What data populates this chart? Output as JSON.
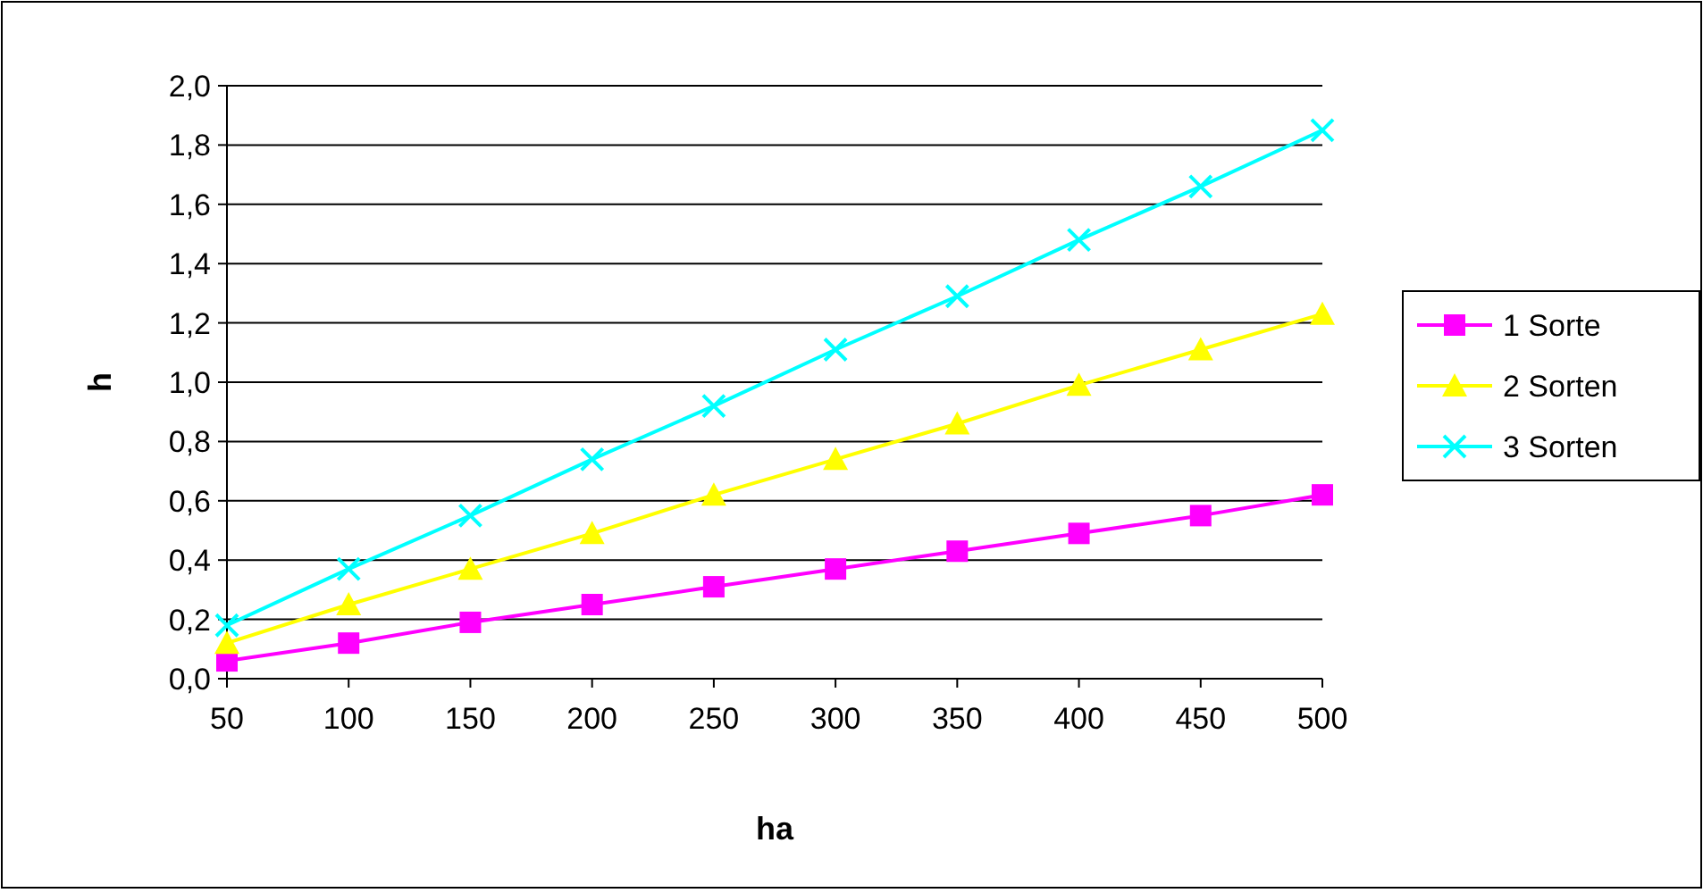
{
  "chart_data": {
    "type": "line",
    "xlabel": "ha",
    "ylabel": "h",
    "x": [
      50,
      100,
      150,
      200,
      250,
      300,
      350,
      400,
      450,
      500
    ],
    "xlim": [
      50,
      500
    ],
    "xticks": [
      50,
      100,
      150,
      200,
      250,
      300,
      350,
      400,
      450,
      500
    ],
    "ylim": [
      0,
      2
    ],
    "yticks": [
      {
        "value": 0,
        "label": "0,0"
      },
      {
        "value": 0.2,
        "label": "0,2"
      },
      {
        "value": 0.4,
        "label": "0,4"
      },
      {
        "value": 0.6,
        "label": "0,6"
      },
      {
        "value": 0.8,
        "label": "0,8"
      },
      {
        "value": 1,
        "label": "1,0"
      },
      {
        "value": 1.2,
        "label": "1,2"
      },
      {
        "value": 1.4,
        "label": "1,4"
      },
      {
        "value": 1.6,
        "label": "1,6"
      },
      {
        "value": 1.8,
        "label": "1,8"
      },
      {
        "value": 2,
        "label": "2,0"
      }
    ],
    "grid": "y",
    "legend": "right",
    "line_style": "solid",
    "series": [
      {
        "name": "1 Sorte",
        "color": "#ff00ff",
        "marker": "square",
        "values": [
          0.06,
          0.12,
          0.19,
          0.25,
          0.31,
          0.37,
          0.43,
          0.49,
          0.55,
          0.62
        ]
      },
      {
        "name": "2 Sorten",
        "color": "#ffff00",
        "marker": "triangle",
        "values": [
          0.12,
          0.25,
          0.37,
          0.49,
          0.62,
          0.74,
          0.86,
          0.99,
          1.11,
          1.23
        ]
      },
      {
        "name": "3 Sorten",
        "color": "#00ffff",
        "marker": "cross",
        "values": [
          0.18,
          0.37,
          0.55,
          0.74,
          0.92,
          1.11,
          1.29,
          1.48,
          1.66,
          1.85
        ]
      }
    ]
  }
}
